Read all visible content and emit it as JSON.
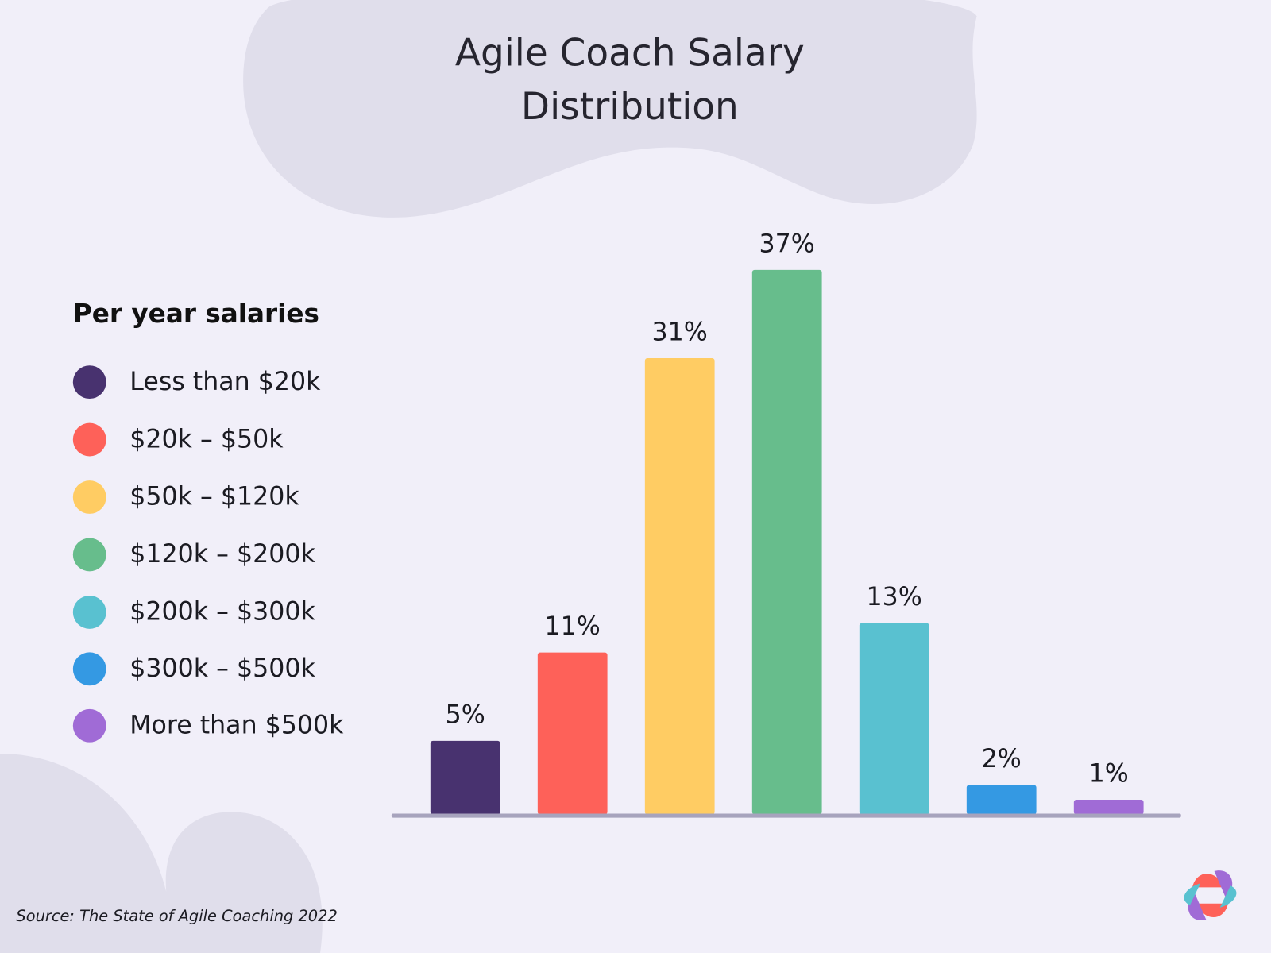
{
  "chart_data": {
    "type": "bar",
    "title": "Agile Coach Salary Distribution",
    "title_lines": [
      "Agile Coach Salary",
      "Distribution"
    ],
    "legend_title": "Per year salaries",
    "legend_placement": "left",
    "categories": [
      "Less than $20k",
      "$20k – $50k",
      "$50k – $120k",
      "$120k – $200k",
      "$200k – $300k",
      "$300k – $500k",
      "More than $500k"
    ],
    "values": [
      5,
      11,
      31,
      37,
      13,
      2,
      1
    ],
    "data_labels": [
      "5%",
      "11%",
      "31%",
      "37%",
      "13%",
      "2%",
      "1%"
    ],
    "colors": [
      "#48326f",
      "#fe6159",
      "#ffcc63",
      "#67bd8c",
      "#59c1d0",
      "#3499e3",
      "#a06bd6"
    ],
    "unit": "%",
    "grid": false,
    "xlabel": "",
    "ylabel": ""
  },
  "source": "Source: The State of Agile Coaching 2022",
  "logo": {
    "icon": "flower-logo-icon",
    "colors": [
      "#fe6159",
      "#a06bd6",
      "#59c1d0"
    ]
  }
}
